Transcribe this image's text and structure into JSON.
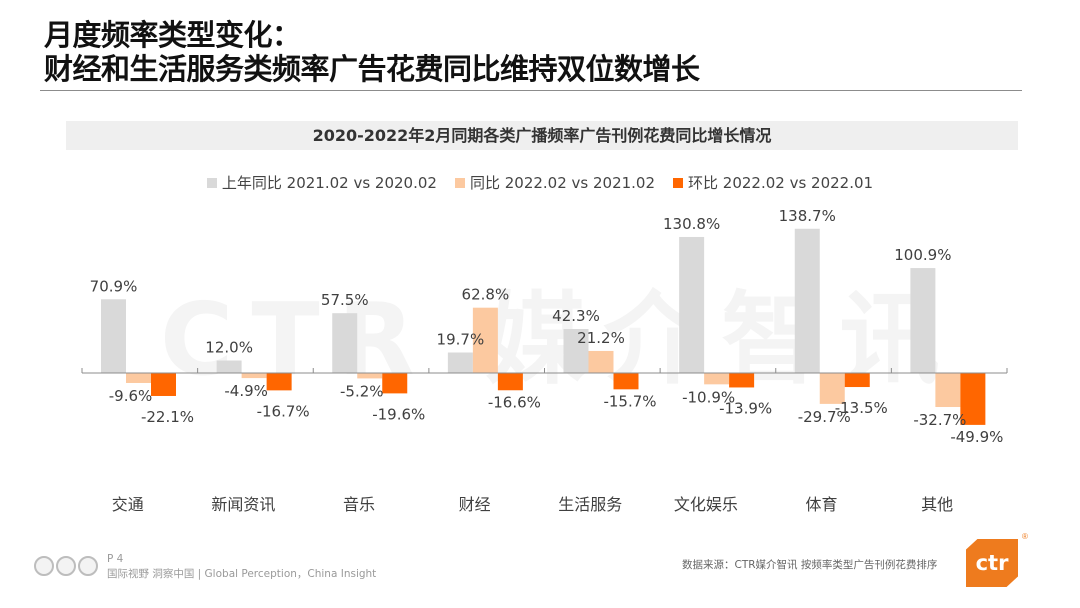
{
  "title": {
    "line1": "月度频率类型变化：",
    "line2": "财经和生活服务类频率广告花费同比维持双位数增长"
  },
  "watermark": "CTR 媒介智讯",
  "chart_data": {
    "type": "bar",
    "title": "2020-2022年2月同期各类广播频率广告刊例花费同比增长情况",
    "xlabel": "",
    "ylabel": "",
    "ylim": [
      -55,
      145
    ],
    "grid": false,
    "legend_position": "top",
    "categories": [
      "交通",
      "新闻资讯",
      "音乐",
      "财经",
      "生活服务",
      "文化娱乐",
      "体育",
      "其他"
    ],
    "series": [
      {
        "name": "上年同比 2021.02 vs 2020.02",
        "color": "#d9d9d9",
        "values": [
          70.9,
          12.0,
          57.5,
          19.7,
          42.3,
          130.8,
          138.7,
          100.9
        ]
      },
      {
        "name": "同比 2022.02 vs 2021.02",
        "color": "#fcc9a0",
        "values": [
          -9.6,
          -4.9,
          -5.2,
          62.8,
          21.2,
          -10.9,
          -29.7,
          -32.7
        ]
      },
      {
        "name": "环比 2022.02 vs 2022.01",
        "color": "#ff6600",
        "values": [
          -22.1,
          -16.7,
          -19.6,
          -16.6,
          -15.7,
          -13.9,
          -13.5,
          -49.9
        ]
      }
    ],
    "value_suffix": "%"
  },
  "footer": {
    "page": "P 4",
    "slogan": "国际视野  洞察中国 | Global Perception，China Insight",
    "source": "数据来源：CTR媒介智讯   按频率类型广告刊例花费排序",
    "logo_text": "ctr",
    "logo_mark": "®"
  },
  "colors": {
    "brand": "#ee7b1e",
    "axis": "#8c8c8c",
    "label": "#404040"
  }
}
